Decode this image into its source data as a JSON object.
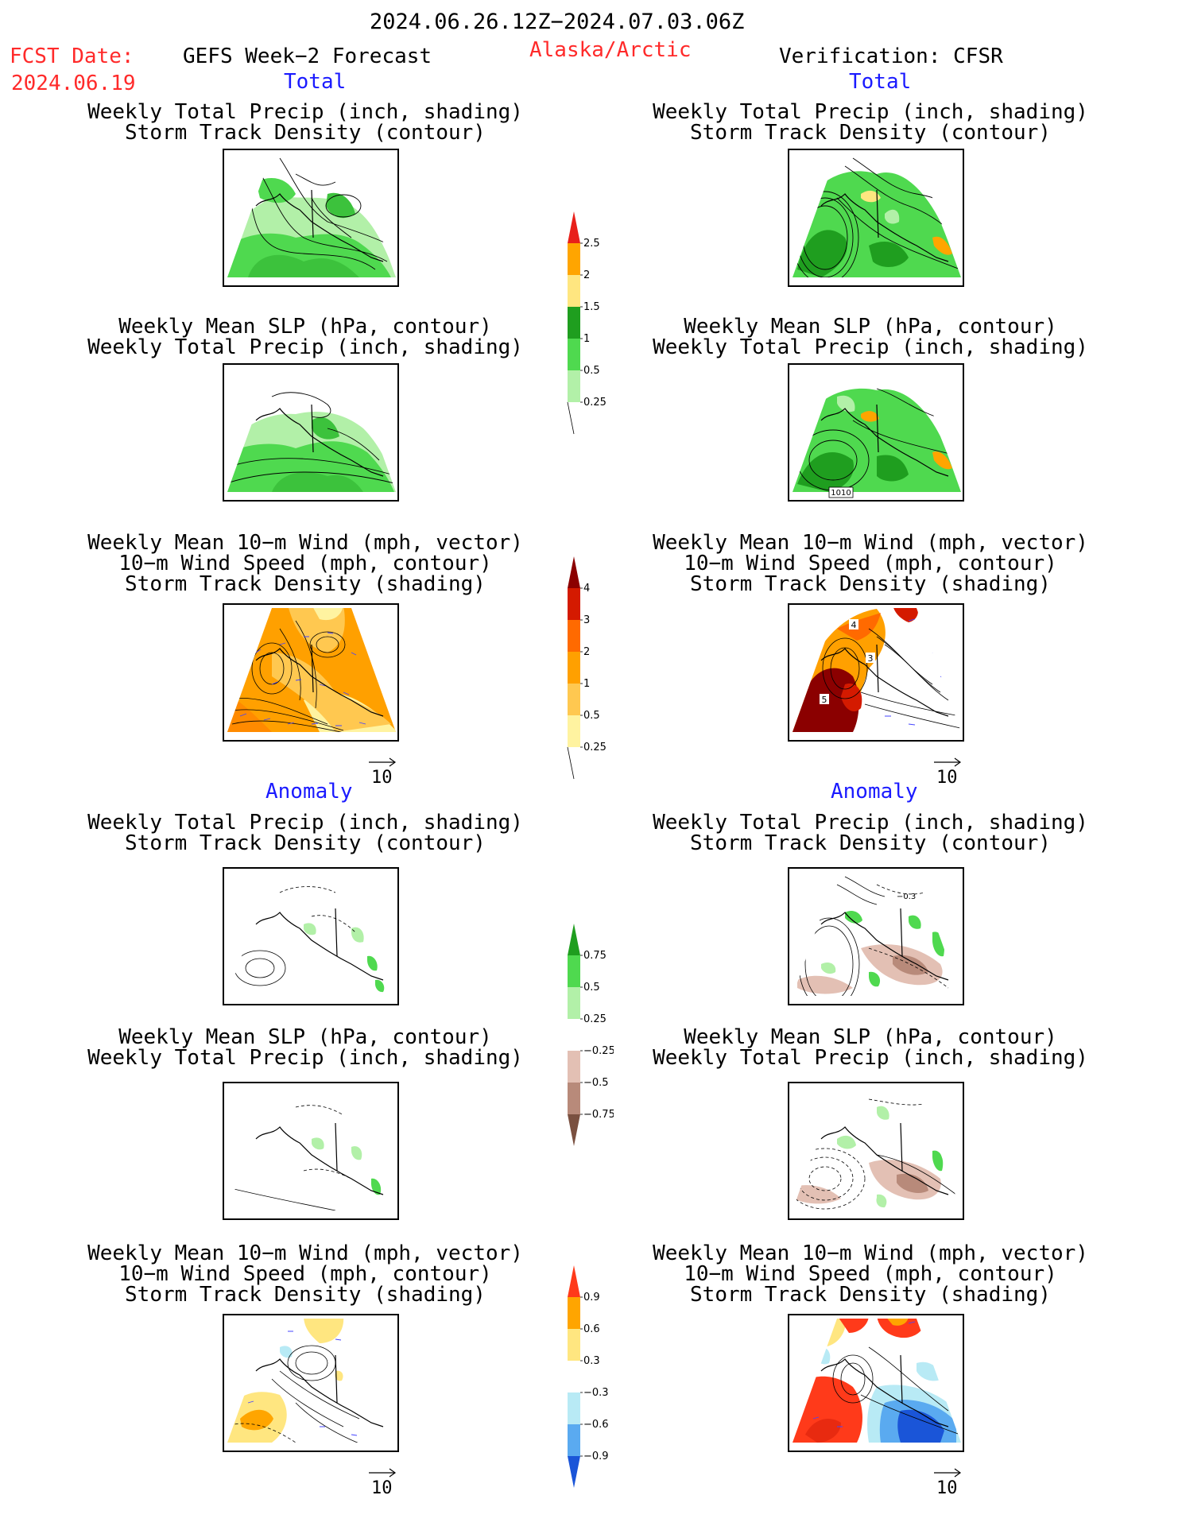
{
  "header": {
    "period": "2024.06.26.12Z−2024.07.03.06Z",
    "fcst_label": "FCST Date:",
    "fcst_date": "2024.06.19",
    "left_title": "GEFS Week−2 Forecast",
    "region": "Alaska/Arctic",
    "right_title": "Verification: CFSR"
  },
  "sections": {
    "total": "Total",
    "anomaly": "Anomaly"
  },
  "panel_titles": {
    "precip_storm": [
      "Weekly Total Precip (inch, shading)",
      "Storm Track Density (contour)"
    ],
    "slp_precip": [
      "Weekly Mean SLP (hPa, contour)",
      "Weekly Total Precip (inch, shading)"
    ],
    "wind_storm": [
      "Weekly Mean 10−m Wind (mph, vector)",
      "10−m Wind Speed (mph, contour)",
      "Storm Track Density (shading)"
    ]
  },
  "vector_key": "10",
  "contour_labels": {
    "slp_total_right": "1010",
    "wind_total_right_a": "4",
    "wind_total_right_b": "5",
    "wind_total_right_c": "3",
    "precip_anom_right": "−0.3"
  },
  "colorbars": {
    "precip_total": {
      "labels": [
        "2.5",
        "2",
        "1.5",
        "1",
        "0.5",
        "0.25"
      ],
      "colors": [
        "#e8201a",
        "#ffa500",
        "#ffe680",
        "#1f9e1f",
        "#4fd94f",
        "#b2f0a8"
      ]
    },
    "storm_total": {
      "labels": [
        "4",
        "3",
        "2",
        "1",
        "0.5",
        "0.25"
      ],
      "colors": [
        "#8b0000",
        "#d41a00",
        "#ff6a00",
        "#ffa000",
        "#ffc850",
        "#fff3a0"
      ]
    },
    "precip_anom": {
      "labels": [
        "0.75",
        "0.5",
        "0.25",
        "−0.25",
        "−0.5",
        "−0.75"
      ],
      "colors": [
        "#1f9e1f",
        "#4fd94f",
        "#b2f0a8",
        "#ffffff",
        "#e3c0b4",
        "#b88a7a",
        "#7a5040"
      ]
    },
    "storm_anom": {
      "labels": [
        "0.9",
        "0.6",
        "0.3",
        "−0.3",
        "−0.6",
        "−0.9"
      ],
      "colors": [
        "#ff3a1a",
        "#ffa500",
        "#ffe680",
        "#ffffff",
        "#b8eaf5",
        "#5aaaf0",
        "#1a55d8"
      ]
    }
  }
}
